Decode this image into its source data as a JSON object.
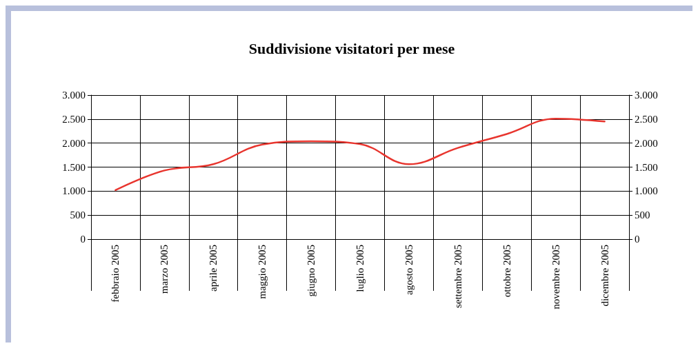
{
  "chart_data": {
    "type": "line",
    "title": "Suddivisione visitatori per mese",
    "categories": [
      "febbraio 2005",
      "marzo 2005",
      "aprile 2005",
      "maggio 2005",
      "giugno 2005",
      "luglio 2005",
      "agosto 2005",
      "settembre 2005",
      "ottobre 2005",
      "novembre 2005",
      "dicembre 2005"
    ],
    "series": [
      {
        "color": "#e8352e",
        "values": [
          1020,
          1430,
          1560,
          1970,
          2040,
          1980,
          1560,
          1900,
          2190,
          2510,
          2450
        ]
      }
    ],
    "ylim": [
      0,
      3000
    ],
    "yticks": [
      0,
      {
        "value": 500,
        "label": "500"
      },
      {
        "value": 1000,
        "label": "1.000"
      },
      {
        "value": 1500,
        "label": "1.500"
      },
      {
        "value": 2000,
        "label": "2.000"
      },
      {
        "value": 2500,
        "label": "2.500"
      },
      {
        "value": 3000,
        "label": "3.000"
      }
    ],
    "y2lim": [
      0,
      3000
    ],
    "y2ticks": [
      0,
      {
        "value": 500,
        "label": "500"
      },
      {
        "value": 1000,
        "label": "1.000"
      },
      {
        "value": 1500,
        "label": "1.500"
      },
      {
        "value": 2000,
        "label": "2.000"
      },
      {
        "value": 2500,
        "label": "2.500"
      },
      {
        "value": 3000,
        "label": "3.000"
      }
    ],
    "grid": true,
    "marker": "none",
    "line_style": "solid"
  }
}
